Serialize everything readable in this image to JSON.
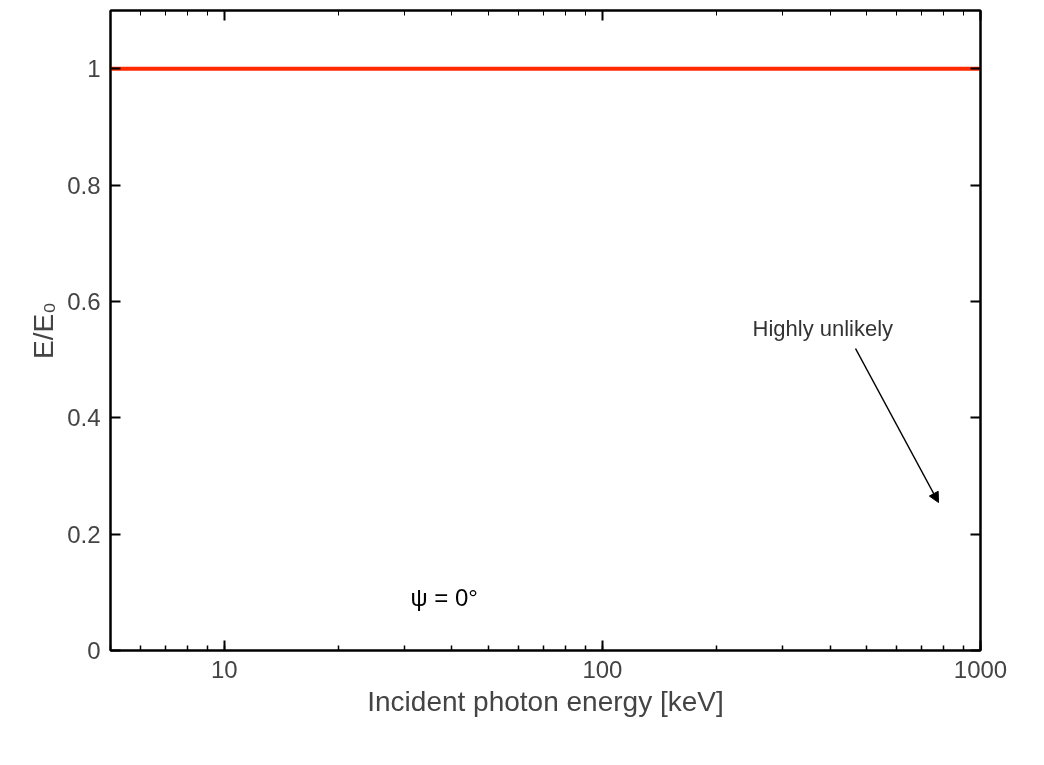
{
  "chart_data": {
    "type": "line",
    "xlabel": "Incident photon energy [keV]",
    "ylabel": "E/E₀",
    "x": [
      5,
      1000
    ],
    "series": [
      {
        "color": "#ff2a00",
        "values": [
          1,
          1
        ]
      }
    ],
    "log": "x",
    "xlim": [
      5,
      1000
    ],
    "xticks": [
      10,
      100,
      1000
    ],
    "ylim": [
      0,
      1.1
    ],
    "yticks": [
      0,
      0.2,
      0.4,
      0.6,
      0.8,
      1
    ],
    "grid": false,
    "annotations": [
      "Highly unlikely",
      "ψ = 0°"
    ]
  }
}
